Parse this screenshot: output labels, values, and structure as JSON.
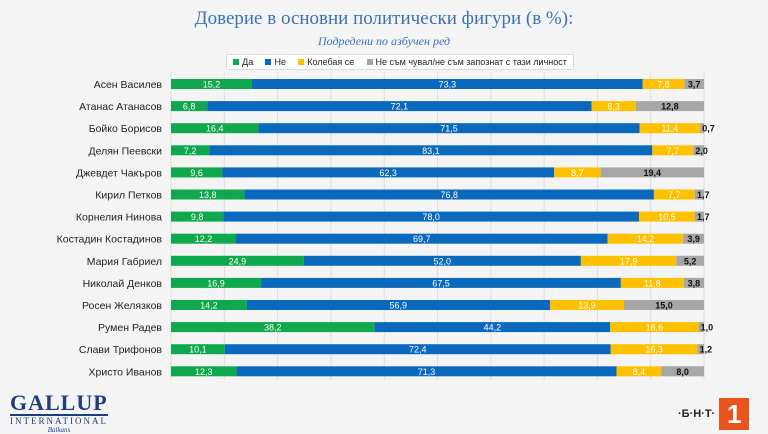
{
  "chart_data": {
    "type": "bar",
    "orientation": "horizontal-stacked",
    "title": "Доверие в основни политически фигури (в %):",
    "subtitle": "Подредени по азбучен ред",
    "xlim": [
      0,
      100
    ],
    "grid": true,
    "legend_position": "top",
    "categories": [
      "Асен Василев",
      "Атанас Атанасов",
      "Бойко Борисов",
      "Делян Пеевски",
      "Джевдет Чакъров",
      "Кирил Петков",
      "Корнелия Нинова",
      "Костадин Костадинов",
      "Мария Габриел",
      "Николай Денков",
      "Росен Желязков",
      "Румен Радев",
      "Слави Трифонов",
      "Христо Иванов"
    ],
    "series": [
      {
        "name": "Да",
        "color": "#0fa84c",
        "values": [
          15.2,
          6.8,
          16.4,
          7.2,
          9.6,
          13.8,
          9.8,
          12.2,
          24.9,
          16.9,
          14.2,
          38.2,
          10.1,
          12.3
        ]
      },
      {
        "name": "Не",
        "color": "#0a68bd",
        "values": [
          73.3,
          72.1,
          71.5,
          83.1,
          62.3,
          76.8,
          78.0,
          69.7,
          52.0,
          67.5,
          56.9,
          44.2,
          72.4,
          71.3
        ]
      },
      {
        "name": "Колебая се",
        "color": "#ffc000",
        "values": [
          7.8,
          8.3,
          11.4,
          7.7,
          8.7,
          7.7,
          10.5,
          14.2,
          17.9,
          11.8,
          13.9,
          16.6,
          16.3,
          8.4
        ]
      },
      {
        "name": "Не съм чувал/не съм запознат с тази личност",
        "color": "#a6a6a6",
        "values": [
          3.7,
          12.8,
          0.7,
          2.0,
          19.4,
          1.7,
          1.7,
          3.9,
          5.2,
          3.8,
          15.0,
          1.0,
          1.2,
          8.0
        ]
      }
    ]
  },
  "logos": {
    "gallup": "GALLUP",
    "gallup_sub": "INTERNATIONAL",
    "gallup_region": "Balkans",
    "bnt": "·Б·Н·Т·",
    "bnt_num": "1"
  }
}
